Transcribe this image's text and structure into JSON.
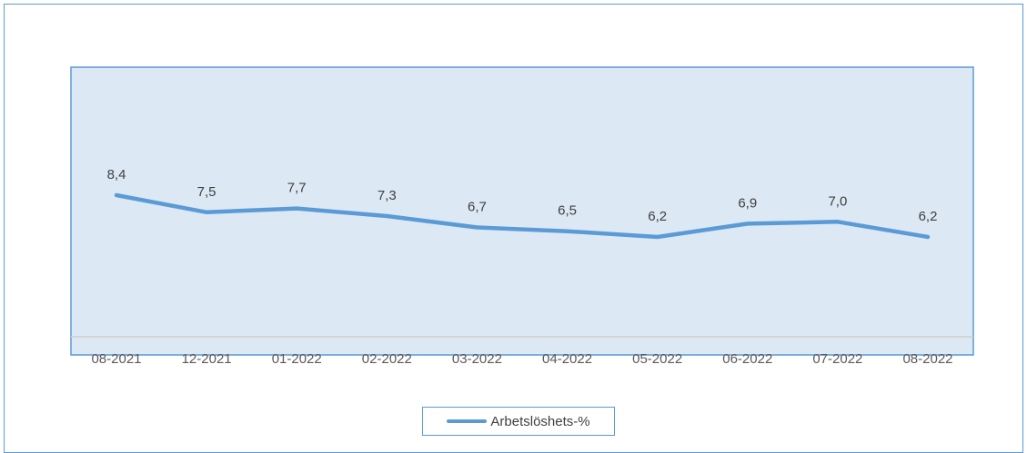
{
  "chart_data": {
    "type": "line",
    "categories": [
      "08-2021",
      "12-2021",
      "01-2022",
      "02-2022",
      "03-2022",
      "04-2022",
      "05-2022",
      "06-2022",
      "07-2022",
      "08-2022"
    ],
    "series": [
      {
        "name": "Arbetslöshets-%",
        "values": [
          8.4,
          7.5,
          7.7,
          7.3,
          6.7,
          6.5,
          6.2,
          6.9,
          7.0,
          6.2
        ],
        "labels": [
          "8,4",
          "7,5",
          "7,7",
          "7,3",
          "6,7",
          "6,5",
          "6,2",
          "6,9",
          "7,0",
          "6,2"
        ],
        "color": "#5b9bd5"
      }
    ],
    "title": "",
    "xlabel": "",
    "ylabel": "",
    "grid": false,
    "legend_position": "bottom",
    "plot_background": "#dde8f5",
    "accent_color": "#5b9bd5"
  },
  "legend": {
    "label": "Arbetslöshets-%"
  }
}
